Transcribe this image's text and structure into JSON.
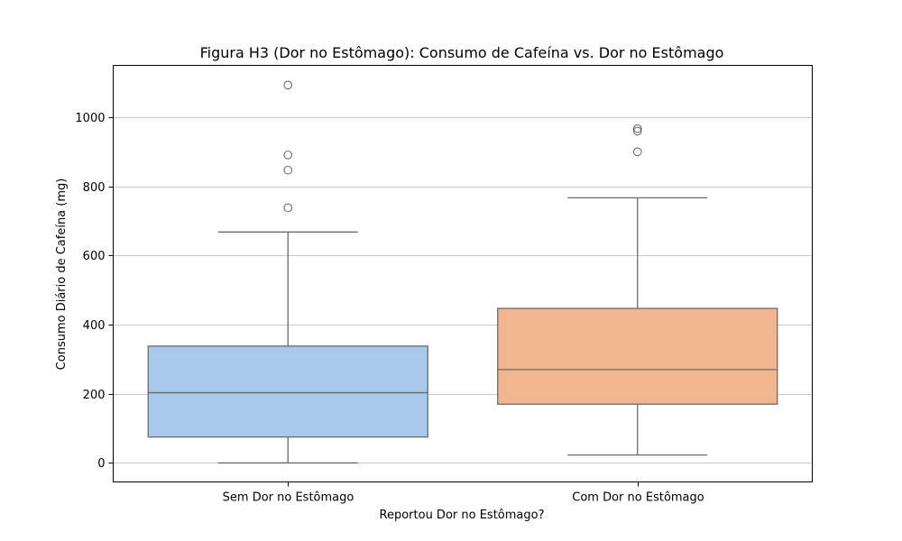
{
  "chart_data": {
    "type": "box",
    "title": "Figura H3 (Dor no Estômago): Consumo de Cafeína vs. Dor no Estômago",
    "xlabel": "Reportou Dor no Estômago?",
    "ylabel": "Consumo Diário de Cafeína (mg)",
    "ylim": [
      -55,
      1150
    ],
    "yticks": [
      0,
      200,
      400,
      600,
      800,
      1000
    ],
    "grid": "y",
    "categories": [
      "Sem Dor no Estômago",
      "Com Dor no Estômago"
    ],
    "boxes": [
      {
        "category": "Sem Dor no Estômago",
        "color": "#a8c8ec",
        "whisker_low": 0,
        "q1": 75,
        "median": 203,
        "q3": 338,
        "whisker_high": 668,
        "outliers": [
          738,
          847,
          891,
          1093
        ]
      },
      {
        "category": "Com Dor no Estômago",
        "color": "#f1b690",
        "whisker_low": 23,
        "q1": 170,
        "median": 270,
        "q3": 447,
        "whisker_high": 767,
        "outliers": [
          900,
          960,
          967
        ]
      }
    ],
    "line_color": "#6b6b6b",
    "grid_color": "#c8c8c8"
  }
}
